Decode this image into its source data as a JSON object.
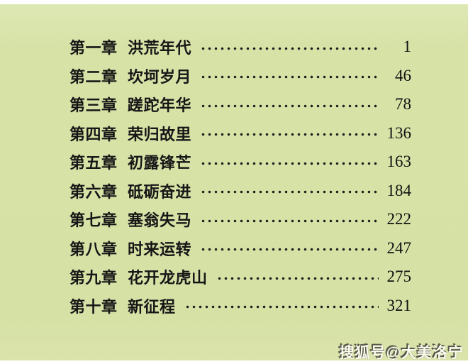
{
  "toc": {
    "entries": [
      {
        "chapter": "第一章",
        "title": "洪荒年代",
        "page": "1"
      },
      {
        "chapter": "第二章",
        "title": "坎坷岁月",
        "page": "46"
      },
      {
        "chapter": "第三章",
        "title": "蹉跎年华",
        "page": "78"
      },
      {
        "chapter": "第四章",
        "title": "荣归故里",
        "page": "136"
      },
      {
        "chapter": "第五章",
        "title": "初露锋芒",
        "page": "163"
      },
      {
        "chapter": "第六章",
        "title": "砥砺奋进",
        "page": "184"
      },
      {
        "chapter": "第七章",
        "title": "塞翁失马",
        "page": "222"
      },
      {
        "chapter": "第八章",
        "title": "时来运转",
        "page": "247"
      },
      {
        "chapter": "第九章",
        "title": "花开龙虎山",
        "page": "275"
      },
      {
        "chapter": "第十章",
        "title": "新征程",
        "page": "321"
      }
    ]
  },
  "watermark": {
    "text": "搜狐号@大美洛宁"
  },
  "colors": {
    "background_green": "#d7e2a7",
    "page_white": "#ffffff",
    "text": "#161616",
    "dot_leader": "#1c1c1c",
    "watermark_fill": "#fdfdf2",
    "watermark_shadow": "#48483c"
  }
}
